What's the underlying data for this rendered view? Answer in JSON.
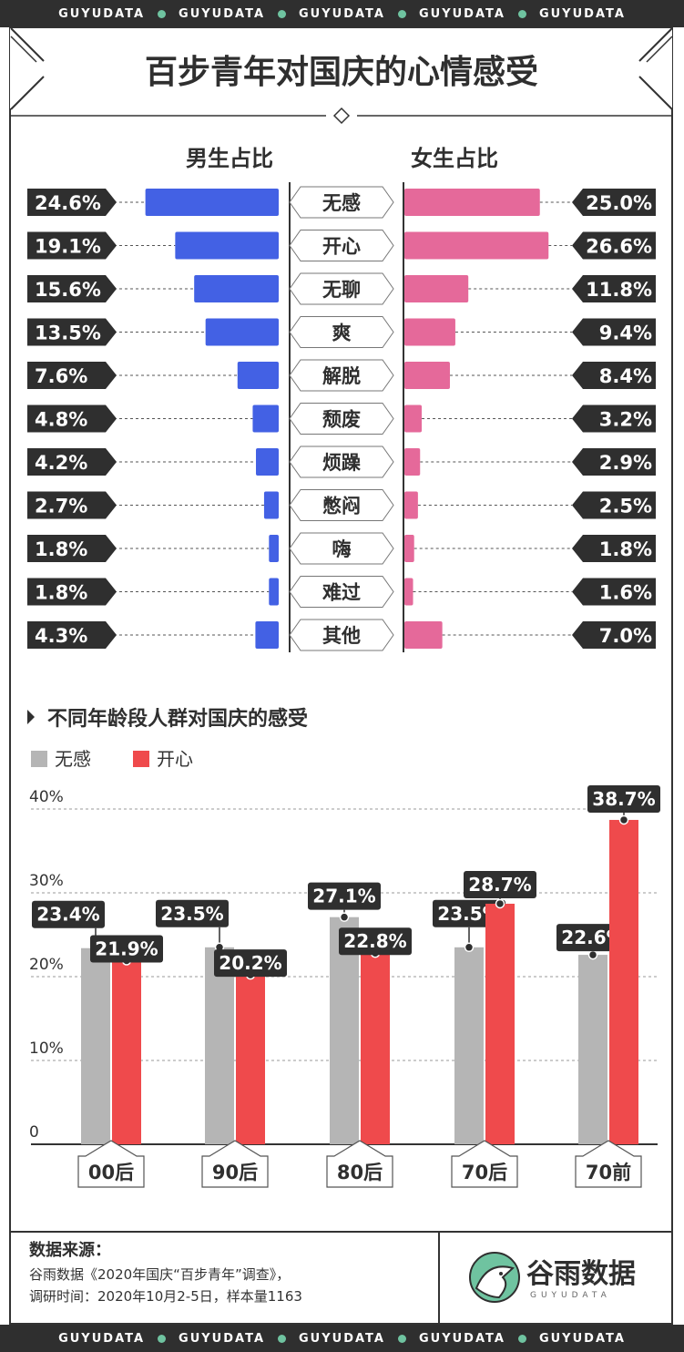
{
  "brand_band": [
    "GUYUDATA",
    "GUYUDATA",
    "GUYUDATA",
    "GUYUDATA",
    "GUYUDATA"
  ],
  "title": "百步青年对国庆的心情感受",
  "chart_data": [
    {
      "type": "bar",
      "orientation": "horizontal-butterfly",
      "categories": [
        "无感",
        "开心",
        "无聊",
        "爽",
        "解脱",
        "颓废",
        "烦躁",
        "憋闷",
        "嗨",
        "难过",
        "其他"
      ],
      "series": [
        {
          "name": "男生占比",
          "values": [
            24.6,
            19.1,
            15.6,
            13.5,
            7.6,
            4.8,
            4.2,
            2.7,
            1.8,
            1.8,
            4.3
          ],
          "labels": [
            "24.6%",
            "19.1%",
            "15.6%",
            "13.5%",
            "7.6%",
            "4.8%",
            "4.2%",
            "2.7%",
            "1.8%",
            "1.8%",
            "4.3%"
          ],
          "color": "#4361e4"
        },
        {
          "name": "女生占比",
          "values": [
            25.0,
            26.6,
            11.8,
            9.4,
            8.4,
            3.2,
            2.9,
            2.5,
            1.8,
            1.6,
            7.0
          ],
          "labels": [
            "25.0%",
            "26.6%",
            "11.8%",
            "9.4%",
            "8.4%",
            "3.2%",
            "2.9%",
            "2.5%",
            "1.8%",
            "1.6%",
            "7.0%"
          ],
          "color": "#e5699a"
        }
      ]
    },
    {
      "type": "bar",
      "title": "不同年龄段人群对国庆的感受",
      "categories": [
        "00后",
        "90后",
        "80后",
        "70后",
        "70前"
      ],
      "series": [
        {
          "name": "无感",
          "values": [
            23.4,
            23.5,
            27.1,
            23.5,
            22.6
          ],
          "labels": [
            "23.4%",
            "23.5%",
            "27.1%",
            "23.5%",
            "22.6%"
          ],
          "color": "#b5b5b5"
        },
        {
          "name": "开心",
          "values": [
            21.9,
            20.2,
            22.8,
            28.7,
            38.7
          ],
          "labels": [
            "21.9%",
            "20.2%",
            "22.8%",
            "28.7%",
            "38.7%"
          ],
          "color": "#ef4a4c"
        }
      ],
      "ylim": [
        0,
        40
      ],
      "ytick_labels": [
        "0",
        "10%",
        "20%",
        "30%",
        "40%"
      ],
      "ytick_values": [
        0,
        10,
        20,
        30,
        40
      ],
      "grid": true,
      "legend": "top-left"
    }
  ],
  "source": {
    "heading": "数据来源：",
    "line1": "谷雨数据《2020年国庆“百步青年”调查》，",
    "line2": "调研时间：2020年10月2-5日，样本量1163"
  },
  "logo": {
    "name": "谷雨数据",
    "sub": "GUYUDATA"
  },
  "colors": {
    "dark": "#2f2f2f",
    "accent_green": "#6fc3a0",
    "male": "#4361e4",
    "female": "#e5699a",
    "grey": "#b5b5b5",
    "red": "#ef4a4c"
  }
}
